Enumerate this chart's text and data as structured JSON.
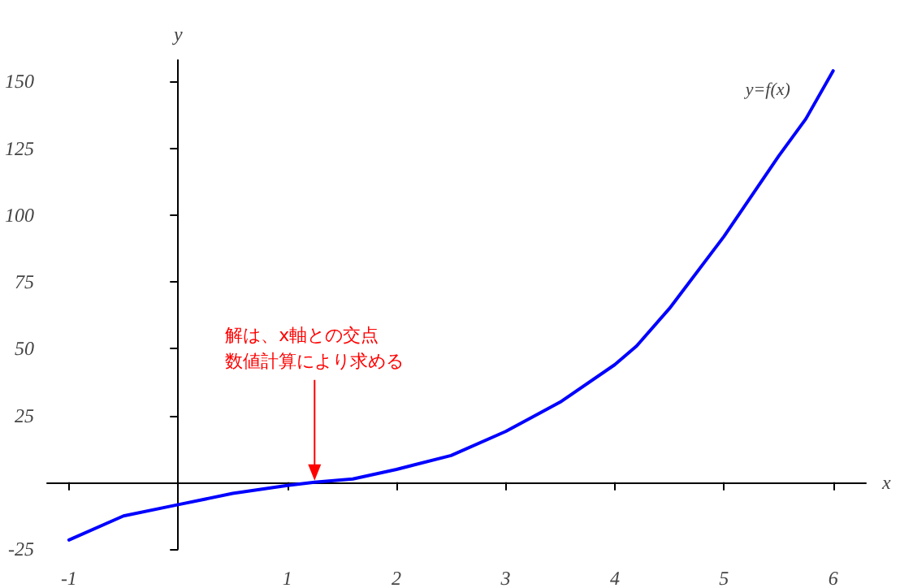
{
  "chart_data": {
    "type": "line",
    "xlabel": "x",
    "ylabel": "y",
    "x": [
      -1,
      -0.5,
      0,
      0.5,
      1,
      1.25,
      1.6,
      2,
      2.5,
      3,
      3.5,
      4,
      4.2,
      4.5,
      5,
      5.5,
      5.75,
      6
    ],
    "series": [
      {
        "name": "y=f(x)",
        "color": "#0000ff",
        "values": [
          -21.6,
          -12.6,
          -8.4,
          -4.2,
          -1.2,
          0,
          1.2,
          4.8,
          10,
          19,
          30,
          44,
          51,
          65,
          92,
          122,
          136,
          154
        ]
      }
    ],
    "xlim": [
      -1.2,
      6.3
    ],
    "ylim": [
      -25,
      158
    ],
    "xticks": [
      -1,
      1,
      2,
      3,
      4,
      5,
      6
    ],
    "yticks": [
      -25,
      25,
      50,
      75,
      100,
      125,
      150
    ],
    "annotations": [
      "解は、x軸との交点",
      {
        "text": "数値計算により求める",
        "x": 1.25,
        "y": 0
      }
    ],
    "grid": false,
    "legend": false,
    "marker": "none",
    "line_style": "solid"
  }
}
